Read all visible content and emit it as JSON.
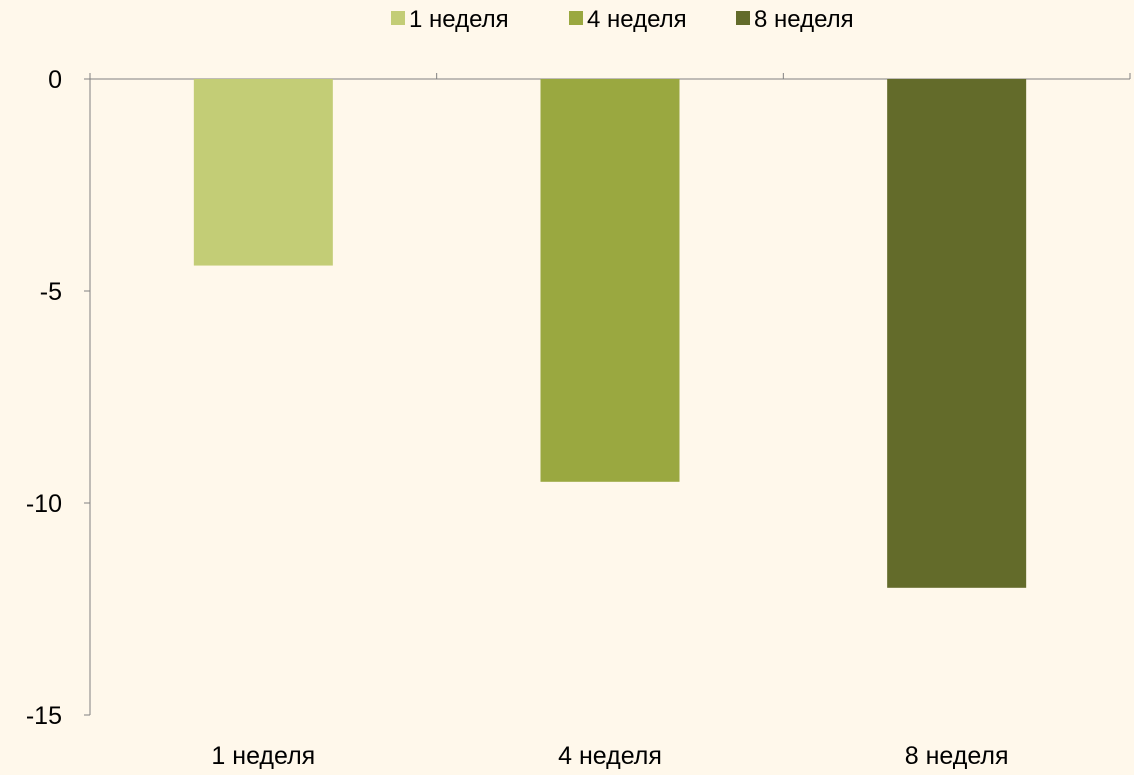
{
  "chart_data": {
    "type": "bar",
    "title": "",
    "xlabel": "",
    "ylabel": "",
    "categories": [
      "1 неделя",
      "4 неделя",
      "8 неделя"
    ],
    "series": [
      {
        "name": "1 неделя",
        "color": "#c3cd76",
        "values": [
          -4.4,
          null,
          null
        ]
      },
      {
        "name": "4 неделя",
        "color": "#9aa840",
        "values": [
          null,
          -9.5,
          null
        ]
      },
      {
        "name": "8 неделя",
        "color": "#636b2a",
        "values": [
          null,
          null,
          -12
        ]
      }
    ],
    "ylim": [
      -15,
      0
    ],
    "yticks": [
      0,
      -5,
      -10,
      -15
    ],
    "ytick_labels": [
      "0",
      "-5",
      "-10",
      "-15"
    ],
    "grid": false,
    "legend_position": "top-center"
  },
  "colors": {
    "background": "#fff8eb",
    "axis": "#808080"
  }
}
